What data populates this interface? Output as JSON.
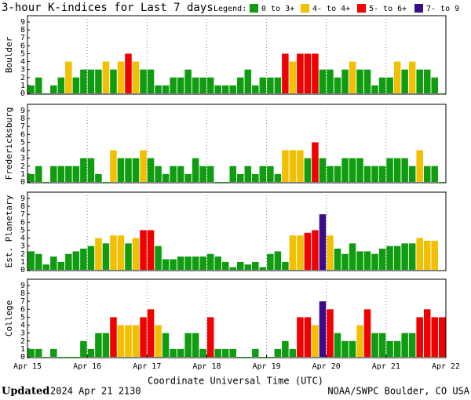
{
  "title": "3-hour K-indices for Last 7 days",
  "legend_title": "Legend:",
  "legend": [
    {
      "label": "0 to 3+",
      "color": "#109c10"
    },
    {
      "label": "4- to 4+",
      "color": "#f2c000"
    },
    {
      "label": "5- to 6+",
      "color": "#f00000"
    },
    {
      "label": "7- to 9",
      "color": "#3a0c8c"
    }
  ],
  "x_axis": {
    "label": "Coordinate Universal Time (UTC)",
    "ticks": [
      "Apr 15",
      "Apr 16",
      "Apr 17",
      "Apr 18",
      "Apr 19",
      "Apr 20",
      "Apr 21",
      "Apr 22"
    ]
  },
  "chart_data": [
    {
      "type": "bar",
      "ylabel": "Boulder",
      "ylim": [
        0,
        9
      ],
      "yticks": [
        0,
        1,
        2,
        3,
        4,
        5,
        6,
        7,
        8,
        9
      ],
      "grid": true,
      "values": [
        1,
        2,
        0,
        1,
        2,
        4,
        2,
        3,
        3,
        3,
        4,
        3,
        4,
        5,
        4,
        3,
        3,
        1,
        1,
        2,
        2,
        3,
        2,
        2,
        2,
        1,
        1,
        1,
        2,
        3,
        1,
        2,
        2,
        2,
        5,
        4,
        5,
        5,
        5,
        3,
        3,
        2,
        3,
        4,
        3,
        3,
        1,
        2,
        2,
        4,
        3,
        4,
        3,
        3,
        2,
        0
      ]
    },
    {
      "type": "bar",
      "ylabel": "Fredericksburg",
      "ylim": [
        0,
        9
      ],
      "yticks": [
        0,
        1,
        2,
        3,
        4,
        5,
        6,
        7,
        8,
        9
      ],
      "grid": true,
      "values": [
        1,
        2,
        0,
        2,
        2,
        2,
        2,
        3,
        3,
        1,
        0,
        4,
        3,
        3,
        3,
        4,
        3,
        2,
        1,
        2,
        2,
        1,
        3,
        2,
        2,
        0,
        0,
        2,
        1,
        2,
        1,
        2,
        2,
        1,
        4,
        4,
        4,
        3,
        5,
        3,
        2,
        2,
        3,
        3,
        3,
        2,
        2,
        2,
        3,
        3,
        3,
        2,
        4,
        2,
        2,
        0
      ]
    },
    {
      "type": "bar",
      "ylabel": "Est. Planetary",
      "ylim": [
        0,
        9
      ],
      "yticks": [
        0,
        1,
        2,
        3,
        4,
        5,
        6,
        7,
        8,
        9
      ],
      "grid": true,
      "values": [
        2.33,
        2,
        0.67,
        1.67,
        1,
        2,
        2.33,
        2.67,
        3,
        4,
        3.33,
        4.33,
        4.33,
        3.33,
        4,
        5,
        5,
        3,
        1.33,
        1.33,
        1.67,
        1.67,
        1.67,
        1.67,
        2,
        1.67,
        1,
        0.33,
        1,
        0.67,
        1,
        0.33,
        2,
        2.33,
        1,
        4.33,
        4.33,
        4.67,
        5,
        7,
        4.33,
        2.67,
        2,
        3.33,
        2.33,
        2.33,
        2,
        2.67,
        3,
        3,
        3.33,
        3.33,
        4,
        3.67,
        3.67,
        null
      ]
    },
    {
      "type": "bar",
      "ylabel": "College",
      "ylim": [
        0,
        9
      ],
      "yticks": [
        0,
        1,
        2,
        3,
        4,
        5,
        6,
        7,
        8,
        9
      ],
      "grid": true,
      "values": [
        1,
        1,
        0,
        1,
        0,
        0,
        0,
        2,
        1,
        3,
        3,
        5,
        4,
        4,
        4,
        5,
        6,
        4,
        3,
        1,
        1,
        3,
        3,
        1,
        5,
        1,
        1,
        1,
        0,
        0,
        1,
        0,
        0,
        1,
        2,
        1,
        5,
        5,
        4,
        7,
        6,
        3,
        2,
        2,
        4,
        6,
        3,
        3,
        2,
        2,
        3,
        3,
        5,
        6,
        5,
        5
      ]
    }
  ],
  "footer": {
    "updated_label": "Updated",
    "updated": "2024 Apr 21 2130",
    "source": "NOAA/SWPC Boulder, CO USA"
  }
}
